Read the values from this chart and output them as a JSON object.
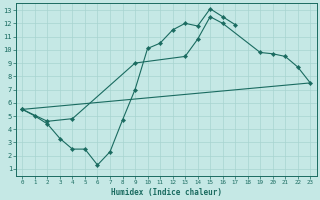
{
  "xlabel": "Humidex (Indice chaleur)",
  "ylabel": "",
  "xlim": [
    -0.5,
    23.5
  ],
  "ylim": [
    0.5,
    13.5
  ],
  "xticks": [
    0,
    1,
    2,
    3,
    4,
    5,
    6,
    7,
    8,
    9,
    10,
    11,
    12,
    13,
    14,
    15,
    16,
    17,
    18,
    19,
    20,
    21,
    22,
    23
  ],
  "yticks": [
    1,
    2,
    3,
    4,
    5,
    6,
    7,
    8,
    9,
    10,
    11,
    12,
    13
  ],
  "bg_color": "#c5e8e5",
  "line_color": "#1a6b60",
  "grid_color": "#a8d4d0",
  "curve1_x": [
    0,
    1,
    2,
    3,
    4,
    5,
    6,
    7,
    8,
    9,
    10,
    11,
    12,
    13,
    14,
    15,
    16,
    17
  ],
  "curve1_y": [
    5.5,
    5.0,
    4.4,
    3.3,
    2.5,
    2.5,
    1.3,
    2.3,
    4.7,
    7.0,
    10.1,
    10.5,
    11.5,
    12.0,
    11.8,
    13.1,
    12.5,
    11.9
  ],
  "curve2_x": [
    0,
    23
  ],
  "curve2_y": [
    5.5,
    7.5
  ],
  "curve3_x": [
    0,
    2,
    4,
    9,
    13,
    14,
    15,
    16,
    19,
    20,
    21,
    22,
    23
  ],
  "curve3_y": [
    5.5,
    4.6,
    4.8,
    9.0,
    9.5,
    10.8,
    12.5,
    12.0,
    9.8,
    9.7,
    9.5,
    8.7,
    7.5
  ],
  "xlabel_fontsize": 5.5,
  "tick_fontsize_x": 4.2,
  "tick_fontsize_y": 5.0
}
